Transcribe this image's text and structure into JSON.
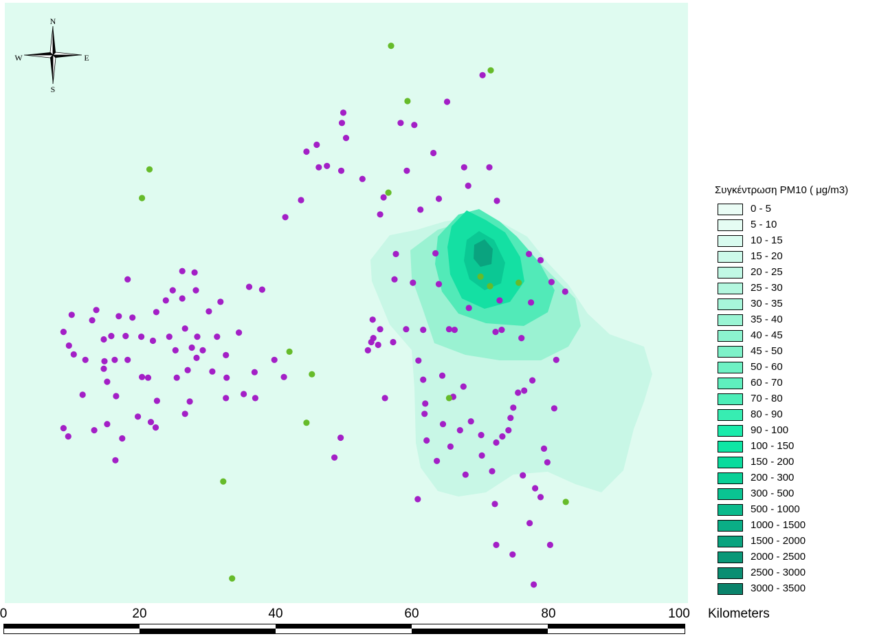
{
  "map": {
    "background_color": "#dffbf0",
    "compass": {
      "north": "N",
      "south": "S",
      "east": "E",
      "west": "W"
    },
    "extent_km": {
      "x": [
        0,
        100
      ]
    },
    "colors": {
      "station_purple": "#a31fc6",
      "station_green": "#66bb2a"
    },
    "purple_stations": [
      [
        70.0,
        10.6
      ],
      [
        64.8,
        14.5
      ],
      [
        49.6,
        16.1
      ],
      [
        49.4,
        17.6
      ],
      [
        58.0,
        17.6
      ],
      [
        60.0,
        17.9
      ],
      [
        50.0,
        19.8
      ],
      [
        45.7,
        20.8
      ],
      [
        44.2,
        21.8
      ],
      [
        62.8,
        22.0
      ],
      [
        47.2,
        23.9
      ],
      [
        46.0,
        24.1
      ],
      [
        67.3,
        24.1
      ],
      [
        71.0,
        24.1
      ],
      [
        49.3,
        24.6
      ],
      [
        58.9,
        24.6
      ],
      [
        52.4,
        25.8
      ],
      [
        67.9,
        26.8
      ],
      [
        55.5,
        28.5
      ],
      [
        43.4,
        28.9
      ],
      [
        63.6,
        28.7
      ],
      [
        72.1,
        29.0
      ],
      [
        60.9,
        30.3
      ],
      [
        55.0,
        31.0
      ],
      [
        41.1,
        31.4
      ],
      [
        57.3,
        36.8
      ],
      [
        63.1,
        36.7
      ],
      [
        76.8,
        36.8
      ],
      [
        78.5,
        37.7
      ],
      [
        26.0,
        39.3
      ],
      [
        27.8,
        39.5
      ],
      [
        18.0,
        40.5
      ],
      [
        57.1,
        40.5
      ],
      [
        59.8,
        41.0
      ],
      [
        63.6,
        41.2
      ],
      [
        80.1,
        40.9
      ],
      [
        35.8,
        41.6
      ],
      [
        37.7,
        42.0
      ],
      [
        82.1,
        42.3
      ],
      [
        24.6,
        42.1
      ],
      [
        28.0,
        42.1
      ],
      [
        26.0,
        43.3
      ],
      [
        23.6,
        43.6
      ],
      [
        72.5,
        43.6
      ],
      [
        77.1,
        43.9
      ],
      [
        31.6,
        43.8
      ],
      [
        68.0,
        44.7
      ],
      [
        13.4,
        45.0
      ],
      [
        22.2,
        45.3
      ],
      [
        29.9,
        45.2
      ],
      [
        9.8,
        45.7
      ],
      [
        16.7,
        45.9
      ],
      [
        18.7,
        46.1
      ],
      [
        53.9,
        46.4
      ],
      [
        12.8,
        46.5
      ],
      [
        26.4,
        47.7
      ],
      [
        55.0,
        47.8
      ],
      [
        58.8,
        47.8
      ],
      [
        61.3,
        47.9
      ],
      [
        65.1,
        47.8
      ],
      [
        72.8,
        47.9
      ],
      [
        65.9,
        47.9
      ],
      [
        8.6,
        48.2
      ],
      [
        34.3,
        48.3
      ],
      [
        71.9,
        48.2
      ],
      [
        15.6,
        48.8
      ],
      [
        17.7,
        48.8
      ],
      [
        20.0,
        48.9
      ],
      [
        24.1,
        48.9
      ],
      [
        28.2,
        48.9
      ],
      [
        31.1,
        48.9
      ],
      [
        54.0,
        49.1
      ],
      [
        53.7,
        49.7
      ],
      [
        56.9,
        49.7
      ],
      [
        75.7,
        49.1
      ],
      [
        14.5,
        49.3
      ],
      [
        21.7,
        49.5
      ],
      [
        9.4,
        50.2
      ],
      [
        54.7,
        50.1
      ],
      [
        27.4,
        50.5
      ],
      [
        25.0,
        50.9
      ],
      [
        29.0,
        50.9
      ],
      [
        53.2,
        50.9
      ],
      [
        10.1,
        51.5
      ],
      [
        32.4,
        51.6
      ],
      [
        28.1,
        52.0
      ],
      [
        11.8,
        52.3
      ],
      [
        14.6,
        52.5
      ],
      [
        16.1,
        52.3
      ],
      [
        18.0,
        52.3
      ],
      [
        39.5,
        52.3
      ],
      [
        60.6,
        52.4
      ],
      [
        80.8,
        52.3
      ],
      [
        14.5,
        53.6
      ],
      [
        26.8,
        53.8
      ],
      [
        30.4,
        54.0
      ],
      [
        36.6,
        54.1
      ],
      [
        64.1,
        54.6
      ],
      [
        20.1,
        54.8
      ],
      [
        25.2,
        54.9
      ],
      [
        21.0,
        54.9
      ],
      [
        40.9,
        54.8
      ],
      [
        32.5,
        54.9
      ],
      [
        61.3,
        55.2
      ],
      [
        15.0,
        55.5
      ],
      [
        77.3,
        55.3
      ],
      [
        67.2,
        56.2
      ],
      [
        76.1,
        56.8
      ],
      [
        11.4,
        57.4
      ],
      [
        75.2,
        57.1
      ],
      [
        35.0,
        57.3
      ],
      [
        16.3,
        57.6
      ],
      [
        55.7,
        57.9
      ],
      [
        36.7,
        57.9
      ],
      [
        32.4,
        57.9
      ],
      [
        65.7,
        57.7
      ],
      [
        22.3,
        58.3
      ],
      [
        27.1,
        58.4
      ],
      [
        61.6,
        58.7
      ],
      [
        74.5,
        59.3
      ],
      [
        80.5,
        59.4
      ],
      [
        26.4,
        60.2
      ],
      [
        61.5,
        60.2
      ],
      [
        19.5,
        60.6
      ],
      [
        74.1,
        60.8
      ],
      [
        21.4,
        61.4
      ],
      [
        68.3,
        61.3
      ],
      [
        15.0,
        61.7
      ],
      [
        64.2,
        61.7
      ],
      [
        22.1,
        62.2
      ],
      [
        8.6,
        62.3
      ],
      [
        13.1,
        62.6
      ],
      [
        73.8,
        62.6
      ],
      [
        66.7,
        62.6
      ],
      [
        9.3,
        63.5
      ],
      [
        72.9,
        63.5
      ],
      [
        69.8,
        63.3
      ],
      [
        49.2,
        63.7
      ],
      [
        17.2,
        63.8
      ],
      [
        61.8,
        64.1
      ],
      [
        72.0,
        64.4
      ],
      [
        65.3,
        65.0
      ],
      [
        79.0,
        65.3
      ],
      [
        48.3,
        66.6
      ],
      [
        69.9,
        66.3
      ],
      [
        63.3,
        67.1
      ],
      [
        16.2,
        67.0
      ],
      [
        79.5,
        67.3
      ],
      [
        71.4,
        68.6
      ],
      [
        67.5,
        69.1
      ],
      [
        75.9,
        69.2
      ],
      [
        77.7,
        71.1
      ],
      [
        78.5,
        72.4
      ],
      [
        60.5,
        72.7
      ],
      [
        71.8,
        73.4
      ],
      [
        76.9,
        76.2
      ],
      [
        72.0,
        79.4
      ],
      [
        79.9,
        79.4
      ],
      [
        74.4,
        80.8
      ],
      [
        77.5,
        85.2
      ]
    ],
    "green_stations": [
      [
        56.6,
        6.3
      ],
      [
        71.2,
        9.9
      ],
      [
        59.0,
        14.4
      ],
      [
        21.2,
        24.4
      ],
      [
        56.2,
        27.8
      ],
      [
        20.1,
        28.6
      ],
      [
        69.7,
        40.1
      ],
      [
        71.1,
        41.5
      ],
      [
        75.3,
        41.0
      ],
      [
        41.7,
        51.1
      ],
      [
        45.0,
        54.4
      ],
      [
        65.1,
        57.9
      ],
      [
        44.2,
        61.5
      ],
      [
        32.0,
        70.1
      ],
      [
        82.2,
        73.1
      ],
      [
        33.3,
        84.3
      ]
    ]
  },
  "legend": {
    "title": "Συγκέντρωση PM10   ( μg/m3)",
    "classes": [
      {
        "label": "0 - 5",
        "color": "#eafcf5"
      },
      {
        "label": "5 - 10",
        "color": "#e5fcf3"
      },
      {
        "label": "10 - 15",
        "color": "#d9fbef"
      },
      {
        "label": "15 - 20",
        "color": "#cdf9ea"
      },
      {
        "label": "20 - 25",
        "color": "#c1f8e5"
      },
      {
        "label": "25 - 30",
        "color": "#b4f7df"
      },
      {
        "label": "30 - 35",
        "color": "#a7f6da"
      },
      {
        "label": "35 - 40",
        "color": "#9af5d4"
      },
      {
        "label": "40 - 45",
        "color": "#8cf3cf"
      },
      {
        "label": "45 - 50",
        "color": "#7ef2c9"
      },
      {
        "label": "50 - 60",
        "color": "#6ff1c4"
      },
      {
        "label": "60 - 70",
        "color": "#5fefbe"
      },
      {
        "label": "70 - 80",
        "color": "#4ceeb8"
      },
      {
        "label": "80 - 90",
        "color": "#37edb2"
      },
      {
        "label": "90 - 100",
        "color": "#1aebab"
      },
      {
        "label": "100 - 150",
        "color": "#0ee6a5"
      },
      {
        "label": "150 - 200",
        "color": "#0adb9d"
      },
      {
        "label": "200 - 300",
        "color": "#0ad097"
      },
      {
        "label": "300 - 500",
        "color": "#0ac492"
      },
      {
        "label": "500 - 1000",
        "color": "#0aba8c"
      },
      {
        "label": "1000 - 1500",
        "color": "#0aae86"
      },
      {
        "label": "1500 - 2000",
        "color": "#0aa37f"
      },
      {
        "label": "2000 - 2500",
        "color": "#0a9878"
      },
      {
        "label": "2500 - 3000",
        "color": "#0a8e72"
      },
      {
        "label": "3000 - 3500",
        "color": "#0a836b"
      }
    ]
  },
  "scalebar": {
    "ticks": [
      "0",
      "20",
      "40",
      "60",
      "80",
      "100"
    ],
    "unit": "Kilometers"
  }
}
